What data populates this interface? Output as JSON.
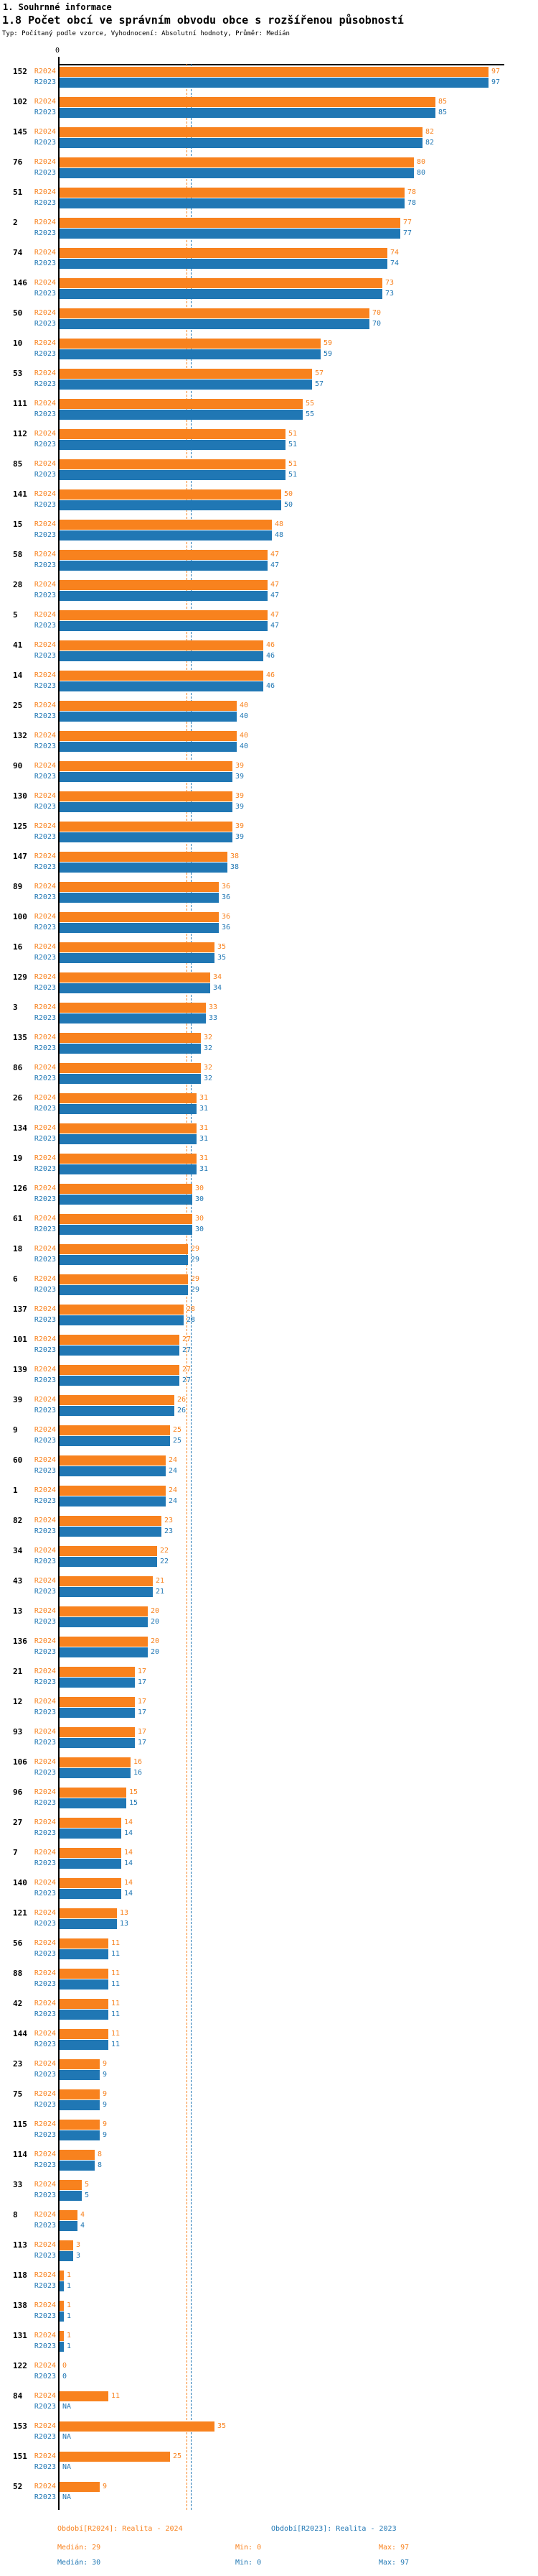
{
  "header": {
    "title": "1. Souhrnné informace",
    "subtitle": "1.8 Počet obcí ve správním obvodu obce s rozšířenou působností",
    "meta": "Typ: Počítaný podle vzorce, Vyhodnocení: Absolutní hodnoty, Průměr: Medián"
  },
  "axis": {
    "zero_label": "0"
  },
  "chart_data": {
    "type": "bar",
    "orientation": "horizontal",
    "title": "1.8 Počet obcí ve správním obvodu obce s rozšířenou působností",
    "xlabel": "",
    "ylabel": "",
    "xlim": [
      0,
      97
    ],
    "grid": false,
    "legend_position": "bottom",
    "categories": [
      "152",
      "102",
      "145",
      "76",
      "51",
      "2",
      "74",
      "146",
      "50",
      "10",
      "53",
      "111",
      "112",
      "85",
      "141",
      "15",
      "58",
      "28",
      "5",
      "41",
      "14",
      "25",
      "132",
      "90",
      "130",
      "125",
      "147",
      "89",
      "100",
      "16",
      "129",
      "3",
      "135",
      "86",
      "26",
      "134",
      "19",
      "126",
      "61",
      "18",
      "6",
      "137",
      "101",
      "139",
      "39",
      "9",
      "60",
      "1",
      "82",
      "34",
      "43",
      "13",
      "136",
      "21",
      "12",
      "93",
      "106",
      "96",
      "27",
      "7",
      "140",
      "121",
      "56",
      "88",
      "42",
      "144",
      "23",
      "75",
      "115",
      "114",
      "33",
      "8",
      "113",
      "118",
      "138",
      "131",
      "122",
      "84",
      "153",
      "151",
      "52"
    ],
    "series": [
      {
        "name": "R2024",
        "color": "#f8821e",
        "values": [
          97,
          85,
          82,
          80,
          78,
          77,
          74,
          73,
          70,
          59,
          57,
          55,
          51,
          51,
          50,
          48,
          47,
          47,
          47,
          46,
          46,
          40,
          40,
          39,
          39,
          39,
          38,
          36,
          36,
          35,
          34,
          33,
          32,
          32,
          31,
          31,
          31,
          30,
          30,
          29,
          29,
          28,
          27,
          27,
          26,
          25,
          24,
          24,
          23,
          22,
          21,
          20,
          20,
          17,
          17,
          17,
          16,
          15,
          14,
          14,
          14,
          13,
          11,
          11,
          11,
          11,
          9,
          9,
          9,
          8,
          5,
          4,
          3,
          1,
          1,
          1,
          0,
          11,
          35,
          25,
          9
        ]
      },
      {
        "name": "R2023",
        "color": "#2077b4",
        "values": [
          97,
          85,
          82,
          80,
          78,
          77,
          74,
          73,
          70,
          59,
          57,
          55,
          51,
          51,
          50,
          48,
          47,
          47,
          47,
          46,
          46,
          40,
          40,
          39,
          39,
          39,
          38,
          36,
          36,
          35,
          34,
          33,
          32,
          32,
          31,
          31,
          31,
          30,
          30,
          29,
          29,
          28,
          27,
          27,
          26,
          25,
          24,
          24,
          23,
          22,
          21,
          20,
          20,
          17,
          17,
          17,
          16,
          15,
          14,
          14,
          14,
          13,
          11,
          11,
          11,
          11,
          9,
          9,
          9,
          8,
          5,
          4,
          3,
          1,
          1,
          1,
          0,
          "NA",
          "NA",
          "NA",
          "NA"
        ]
      }
    ],
    "reference_lines": [
      {
        "name": "median-2024",
        "value": 29,
        "color": "#f8821e"
      },
      {
        "name": "median-2023",
        "value": 30,
        "color": "#2077b4"
      }
    ]
  },
  "footer": {
    "legend": [
      {
        "label": "Období[R2024]: Realita - 2024",
        "color": "#f8821e"
      },
      {
        "label": "Období[R2023]: Realita - 2023",
        "color": "#2077b4"
      }
    ],
    "stats": [
      {
        "median": "Medián: 29",
        "min": "Min: 0",
        "max": "Max: 97",
        "color": "#f8821e"
      },
      {
        "median": "Medián: 30",
        "min": "Min: 0",
        "max": "Max: 97",
        "color": "#2077b4"
      }
    ]
  }
}
